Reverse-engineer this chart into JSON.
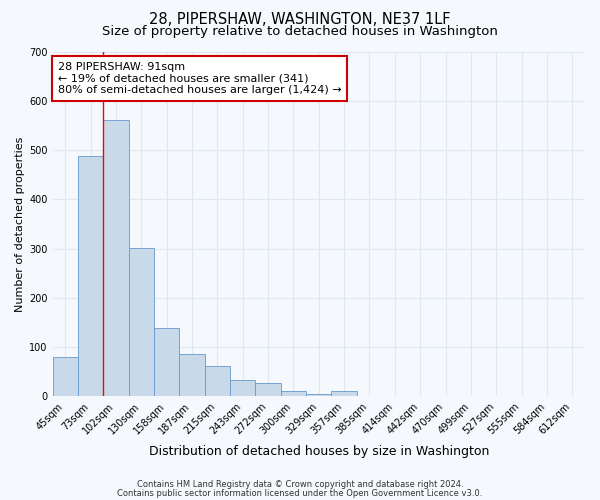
{
  "title": "28, PIPERSHAW, WASHINGTON, NE37 1LF",
  "subtitle": "Size of property relative to detached houses in Washington",
  "xlabel": "Distribution of detached houses by size in Washington",
  "ylabel": "Number of detached properties",
  "bar_color": "#c8daea",
  "bar_edge_color": "#6699cc",
  "categories": [
    "45sqm",
    "73sqm",
    "102sqm",
    "130sqm",
    "158sqm",
    "187sqm",
    "215sqm",
    "243sqm",
    "272sqm",
    "300sqm",
    "329sqm",
    "357sqm",
    "385sqm",
    "414sqm",
    "442sqm",
    "470sqm",
    "499sqm",
    "527sqm",
    "555sqm",
    "584sqm",
    "612sqm"
  ],
  "values": [
    80,
    487,
    560,
    302,
    138,
    85,
    62,
    33,
    27,
    10,
    5,
    10,
    0,
    0,
    0,
    0,
    0,
    0,
    0,
    0,
    0
  ],
  "ylim": [
    0,
    700
  ],
  "yticks": [
    0,
    100,
    200,
    300,
    400,
    500,
    600,
    700
  ],
  "red_line_x": 1.5,
  "annotation_line1": "28 PIPERSHAW: 91sqm",
  "annotation_line2": "← 19% of detached houses are smaller (341)",
  "annotation_line3": "80% of semi-detached houses are larger (1,424) →",
  "annotation_box_color": "#ffffff",
  "annotation_box_edge": "#cc0000",
  "footer_line1": "Contains HM Land Registry data © Crown copyright and database right 2024.",
  "footer_line2": "Contains public sector information licensed under the Open Government Licence v3.0.",
  "background_color": "#f5f8fc",
  "grid_color": "#dde8f0",
  "title_fontsize": 10.5,
  "subtitle_fontsize": 9.5,
  "xlabel_fontsize": 9,
  "ylabel_fontsize": 8,
  "tick_fontsize": 7,
  "annotation_fontsize": 8,
  "footer_fontsize": 6
}
